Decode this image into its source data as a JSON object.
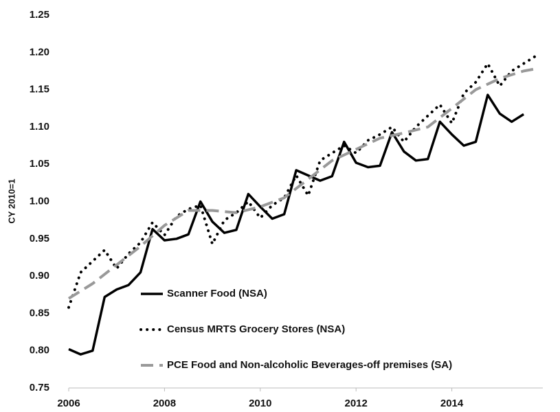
{
  "chart_data": {
    "type": "line",
    "y_label": "CY 2010=1",
    "xlim": [
      2006,
      2015.9
    ],
    "xticks": [
      2006,
      2008,
      2010,
      2012,
      2014
    ],
    "ylim": [
      0.75,
      1.25
    ],
    "yticks": [
      0.75,
      {
        "value": 0.8,
        "label": "0.80"
      },
      0.85,
      {
        "value": 0.9,
        "label": "0.90"
      },
      0.95,
      {
        "value": 1.0,
        "label": "1.00"
      },
      1.05,
      {
        "value": 1.1,
        "label": "1.10"
      },
      1.15,
      {
        "value": 1.2,
        "label": "1.20"
      },
      1.25
    ],
    "grid": false,
    "legend": "lower right",
    "series": [
      {
        "name": "Scanner Food (NSA)",
        "color": "#000000",
        "dash": "solid",
        "x": [
          2006,
          2006.25,
          2006.5,
          2006.75,
          2007,
          2007.25,
          2007.5,
          2007.75,
          2008,
          2008.25,
          2008.5,
          2008.75,
          2009,
          2009.25,
          2009.5,
          2009.75,
          2010,
          2010.25,
          2010.5,
          2010.75,
          2011,
          2011.25,
          2011.5,
          2011.75,
          2012,
          2012.25,
          2012.5,
          2012.75,
          2013,
          2013.25,
          2013.5,
          2013.75,
          2014,
          2014.25,
          2014.5,
          2014.75,
          2015,
          2015.25,
          2015.5
        ],
        "values": [
          0.802,
          0.795,
          0.8,
          0.872,
          0.882,
          0.888,
          0.905,
          0.963,
          0.948,
          0.95,
          0.956,
          1.0,
          0.973,
          0.958,
          0.962,
          1.01,
          0.993,
          0.977,
          0.983,
          1.042,
          1.035,
          1.028,
          1.034,
          1.08,
          1.052,
          1.046,
          1.048,
          1.093,
          1.067,
          1.055,
          1.057,
          1.107,
          1.09,
          1.075,
          1.08,
          1.143,
          1.118,
          1.107,
          1.117
        ]
      },
      {
        "name": "Census MRTS Grocery Stores (NSA)",
        "color": "#000000",
        "dash": "dotted",
        "x": [
          2006,
          2006.25,
          2006.5,
          2006.75,
          2007,
          2007.25,
          2007.5,
          2007.75,
          2008,
          2008.25,
          2008.5,
          2008.75,
          2009,
          2009.25,
          2009.5,
          2009.75,
          2010,
          2010.25,
          2010.5,
          2010.75,
          2011,
          2011.25,
          2011.5,
          2011.75,
          2012,
          2012.25,
          2012.5,
          2012.75,
          2013,
          2013.25,
          2013.5,
          2013.75,
          2014,
          2014.25,
          2014.5,
          2014.75,
          2015,
          2015.25,
          2015.5,
          2015.75
        ],
        "values": [
          0.858,
          0.905,
          0.92,
          0.935,
          0.91,
          0.93,
          0.945,
          0.972,
          0.955,
          0.98,
          0.99,
          0.995,
          0.943,
          0.975,
          0.985,
          1.0,
          0.978,
          0.995,
          1.005,
          1.035,
          1.008,
          1.055,
          1.065,
          1.075,
          1.065,
          1.082,
          1.09,
          1.1,
          1.08,
          1.1,
          1.115,
          1.13,
          1.105,
          1.145,
          1.16,
          1.185,
          1.155,
          1.175,
          1.185,
          1.195
        ]
      },
      {
        "name": "PCE Food and Non-alcoholic Beverages-off premises (SA)",
        "color": "#999999",
        "dash": "dashed",
        "x": [
          2006,
          2006.5,
          2007,
          2007.5,
          2008,
          2008.5,
          2009,
          2009.5,
          2010,
          2010.5,
          2011,
          2011.5,
          2012,
          2012.5,
          2013,
          2013.5,
          2014,
          2014.5,
          2015,
          2015.5,
          2015.75
        ],
        "values": [
          0.87,
          0.89,
          0.915,
          0.94,
          0.968,
          0.988,
          0.988,
          0.985,
          0.993,
          1.005,
          1.03,
          1.055,
          1.07,
          1.085,
          1.092,
          1.1,
          1.125,
          1.15,
          1.165,
          1.175,
          1.178
        ]
      }
    ]
  }
}
